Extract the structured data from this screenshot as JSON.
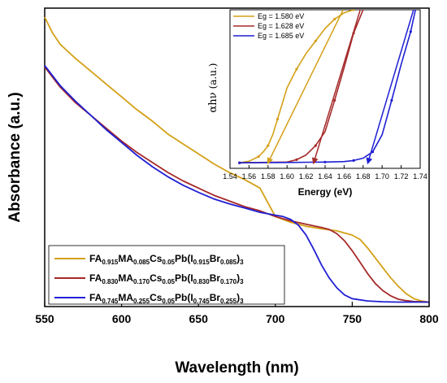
{
  "chart_data": [
    {
      "type": "line",
      "title": "",
      "xlabel": "Wavelength (nm)",
      "ylabel": "Absorbance (a.u.)",
      "xlim": [
        550,
        800
      ],
      "ylim": [
        0,
        1
      ],
      "xticks": [
        "550",
        "600",
        "650",
        "700",
        "750",
        "800"
      ],
      "yticks_shown": false,
      "grid": false,
      "legend_position": "bottom-left",
      "series": [
        {
          "name": "FA0.915MA0.085Cs0.05Pb(I0.915Br0.085)3",
          "legend_parts": [
            [
              "FA",
              ""
            ],
            [
              "0.915",
              "sub"
            ],
            [
              "MA",
              ""
            ],
            [
              "0.085",
              "sub"
            ],
            [
              "Cs",
              ""
            ],
            [
              "0.05",
              "sub"
            ],
            [
              "Pb(I",
              ""
            ],
            [
              "0.915",
              "sub"
            ],
            [
              "Br",
              ""
            ],
            [
              "0.085",
              "sub"
            ],
            [
              ")",
              ""
            ],
            [
              "3",
              "sub"
            ]
          ],
          "color": "#D4A017",
          "x": [
            550,
            555,
            560,
            565,
            570,
            580,
            590,
            600,
            610,
            620,
            630,
            640,
            650,
            660,
            670,
            680,
            690,
            700,
            710,
            720,
            730,
            740,
            750,
            755,
            760,
            765,
            770,
            775,
            780,
            785,
            790,
            795,
            800
          ],
          "y": [
            1.0,
            0.945,
            0.905,
            0.88,
            0.855,
            0.81,
            0.765,
            0.72,
            0.675,
            0.635,
            0.59,
            0.555,
            0.52,
            0.485,
            0.455,
            0.43,
            0.4,
            0.3,
            0.28,
            0.266,
            0.257,
            0.25,
            0.235,
            0.22,
            0.19,
            0.155,
            0.12,
            0.085,
            0.055,
            0.03,
            0.012,
            0.004,
            0.0
          ]
        },
        {
          "name": "FA0.830MA0.170Cs0.05Pb(I0.830Br0.170)3",
          "legend_parts": [
            [
              "FA",
              ""
            ],
            [
              "0.830",
              "sub"
            ],
            [
              "MA",
              ""
            ],
            [
              "0.170",
              "sub"
            ],
            [
              "Cs",
              ""
            ],
            [
              "0.05",
              "sub"
            ],
            [
              "Pb(I",
              ""
            ],
            [
              "0.830",
              "sub"
            ],
            [
              "Br",
              ""
            ],
            [
              "0.170",
              "sub"
            ],
            [
              ")",
              ""
            ],
            [
              "3",
              "sub"
            ]
          ],
          "color": "#A52A2A",
          "x": [
            550,
            560,
            570,
            580,
            590,
            600,
            610,
            620,
            630,
            640,
            650,
            660,
            670,
            680,
            690,
            700,
            710,
            720,
            730,
            735,
            740,
            745,
            750,
            755,
            760,
            765,
            770,
            775,
            780,
            785,
            790,
            800
          ],
          "y": [
            0.825,
            0.755,
            0.7,
            0.655,
            0.61,
            0.565,
            0.525,
            0.49,
            0.455,
            0.425,
            0.4,
            0.375,
            0.355,
            0.335,
            0.32,
            0.3,
            0.285,
            0.273,
            0.262,
            0.255,
            0.24,
            0.215,
            0.18,
            0.14,
            0.1,
            0.065,
            0.04,
            0.022,
            0.01,
            0.005,
            0.002,
            0.0
          ]
        },
        {
          "name": "FA0.745MA0.255Cs0.05Pb(I0.745Br0.255)3",
          "legend_parts": [
            [
              "FA",
              ""
            ],
            [
              "0.745",
              "sub"
            ],
            [
              "MA",
              ""
            ],
            [
              "0.255",
              "sub"
            ],
            [
              "Cs",
              ""
            ],
            [
              "0.05",
              "sub"
            ],
            [
              "Pb(I",
              ""
            ],
            [
              "0.745",
              "sub"
            ],
            [
              "Br",
              ""
            ],
            [
              "0.255",
              "sub"
            ],
            [
              ")",
              ""
            ],
            [
              "3",
              "sub"
            ]
          ],
          "color": "#1F1FD4",
          "x": [
            550,
            560,
            570,
            580,
            590,
            600,
            610,
            620,
            630,
            640,
            650,
            660,
            670,
            680,
            690,
            700,
            705,
            710,
            715,
            720,
            725,
            730,
            735,
            740,
            745,
            750,
            760,
            770,
            780,
            800
          ],
          "y": [
            0.83,
            0.76,
            0.705,
            0.655,
            0.605,
            0.56,
            0.515,
            0.475,
            0.44,
            0.41,
            0.385,
            0.362,
            0.345,
            0.33,
            0.315,
            0.305,
            0.3,
            0.29,
            0.27,
            0.235,
            0.185,
            0.13,
            0.085,
            0.05,
            0.025,
            0.012,
            0.004,
            0.001,
            0.0,
            0.0
          ]
        }
      ]
    },
    {
      "type": "line",
      "title": "",
      "xlabel": "Energy (eV)",
      "ylabel_parts": [
        "αhν",
        "(a.u.)"
      ],
      "xlim": [
        1.54,
        1.74
      ],
      "ylim": [
        0,
        1
      ],
      "xticks": [
        "1.54",
        "1.56",
        "1.58",
        "1.60",
        "1.62",
        "1.64",
        "1.66",
        "1.68",
        "1.70",
        "1.72",
        "1.74"
      ],
      "yticks_shown": false,
      "grid": false,
      "legend_position": "top-left",
      "series": [
        {
          "name": "Eg = 1.580 eV",
          "color": "#D4A017",
          "x": [
            1.55,
            1.56,
            1.57,
            1.575,
            1.58,
            1.585,
            1.59,
            1.6,
            1.61,
            1.62,
            1.63,
            1.64,
            1.65,
            1.66,
            1.67
          ],
          "y": [
            0.02,
            0.03,
            0.06,
            0.09,
            0.13,
            0.2,
            0.3,
            0.5,
            0.62,
            0.72,
            0.8,
            0.88,
            0.94,
            0.98,
            1.0
          ],
          "eg": 1.58,
          "tangent": [
            [
              1.58,
              0.02
            ],
            [
              1.659,
              1.0
            ]
          ]
        },
        {
          "name": "Eg = 1.628 eV",
          "color": "#A52A2A",
          "x": [
            1.55,
            1.6,
            1.61,
            1.62,
            1.63,
            1.64,
            1.65,
            1.66,
            1.67,
            1.68
          ],
          "y": [
            0.02,
            0.025,
            0.04,
            0.07,
            0.13,
            0.22,
            0.42,
            0.63,
            0.85,
            1.0
          ],
          "eg": 1.628,
          "tangent": [
            [
              1.628,
              0.02
            ],
            [
              1.677,
              1.0
            ]
          ]
        },
        {
          "name": "Eg = 1.685 eV",
          "color": "#1F1FD4",
          "x": [
            1.55,
            1.6,
            1.64,
            1.66,
            1.67,
            1.68,
            1.69,
            1.7,
            1.71,
            1.72,
            1.73,
            1.735
          ],
          "y": [
            0.02,
            0.022,
            0.025,
            0.028,
            0.035,
            0.05,
            0.09,
            0.2,
            0.42,
            0.65,
            0.86,
            1.0
          ],
          "eg": 1.685,
          "tangent": [
            [
              1.685,
              0.02
            ],
            [
              1.733,
              1.0
            ]
          ]
        }
      ]
    }
  ]
}
